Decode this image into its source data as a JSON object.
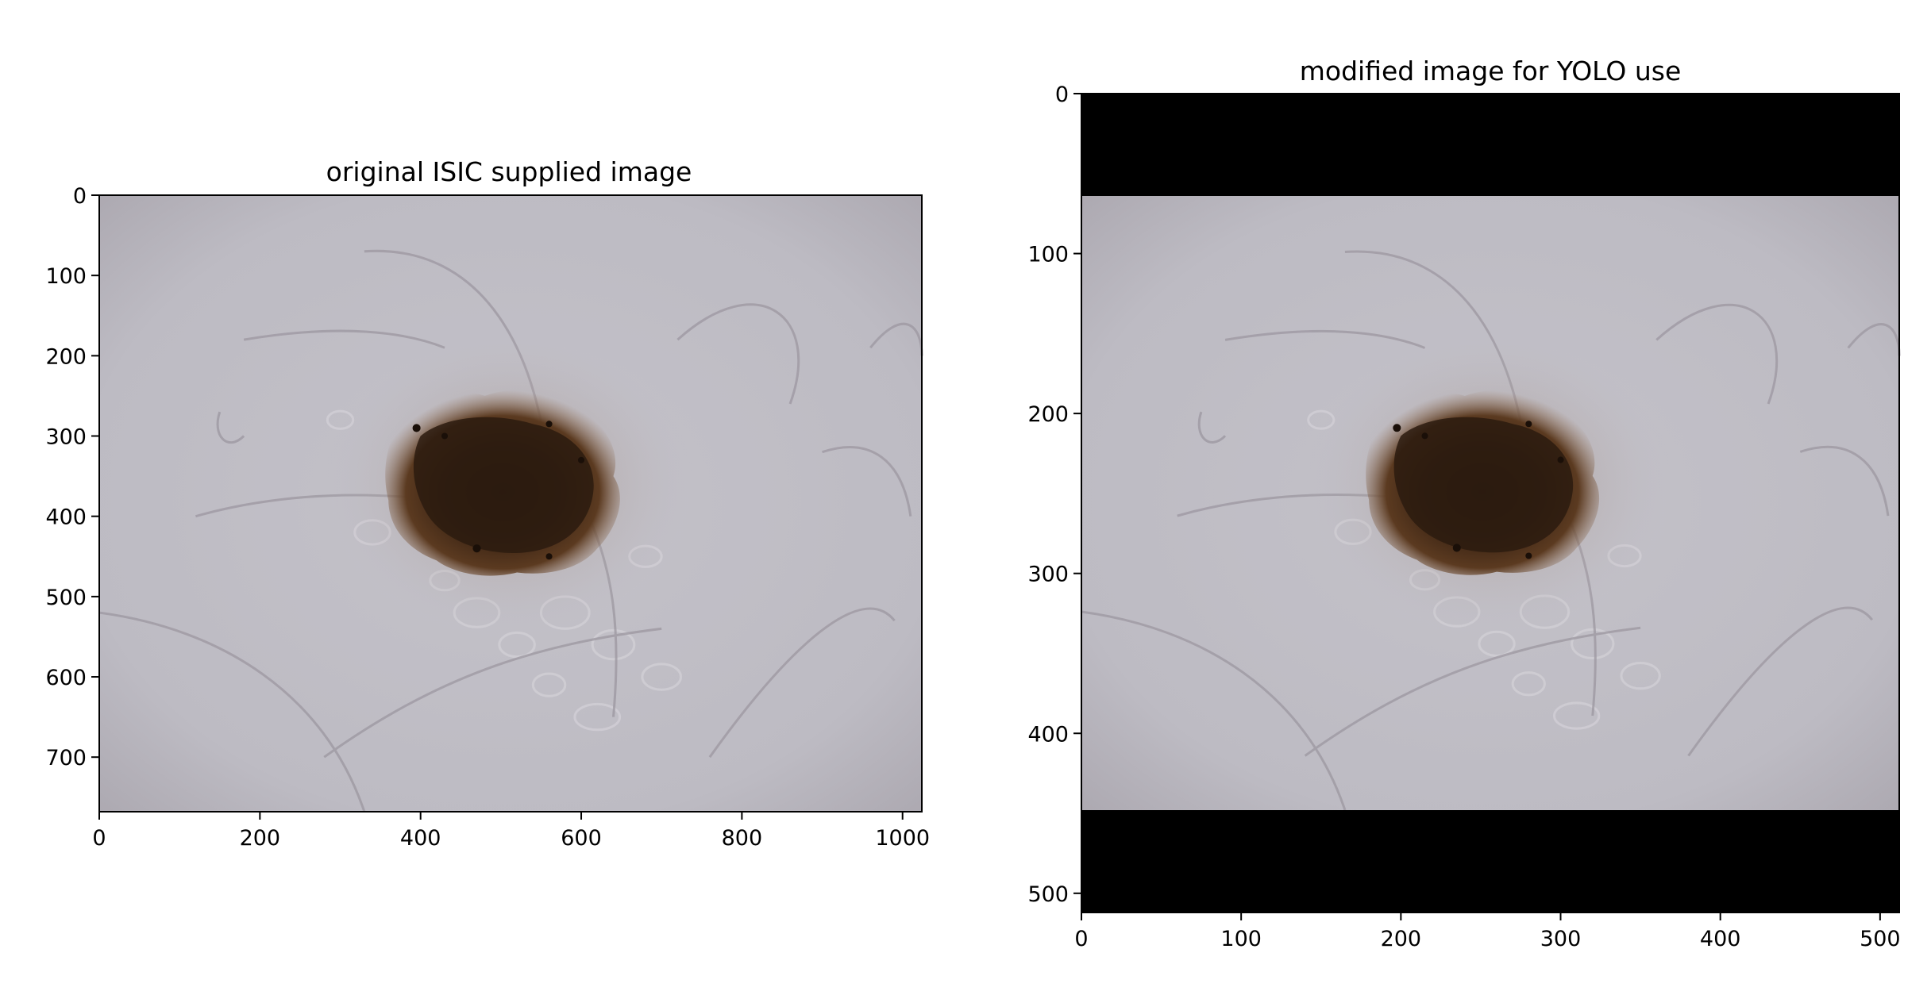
{
  "chart_data": [
    {
      "type": "image",
      "title": "original ISIC supplied image",
      "xlabel": "",
      "ylabel": "",
      "xlim": [
        0,
        1024
      ],
      "ylim": [
        768,
        0
      ],
      "x_ticks": [
        0,
        200,
        400,
        600,
        800,
        1000
      ],
      "y_ticks": [
        0,
        100,
        200,
        300,
        400,
        500,
        600,
        700
      ],
      "content": "dermoscopy image of skin lesion",
      "colors": {
        "skin": "#bdbac2",
        "lesion": "#3f2714"
      }
    },
    {
      "type": "image",
      "title": "modified image for YOLO use",
      "xlabel": "",
      "ylabel": "",
      "xlim": [
        0,
        512
      ],
      "ylim": [
        512,
        0
      ],
      "x_ticks": [
        0,
        100,
        200,
        300,
        400,
        500
      ],
      "y_ticks": [
        0,
        100,
        200,
        300,
        400,
        500
      ],
      "image_rows": [
        64,
        448
      ],
      "content": "letterboxed dermoscopy image with black padding bars",
      "colors": {
        "skin": "#bdbac2",
        "lesion": "#3f2714",
        "padding": "#000000"
      }
    }
  ]
}
